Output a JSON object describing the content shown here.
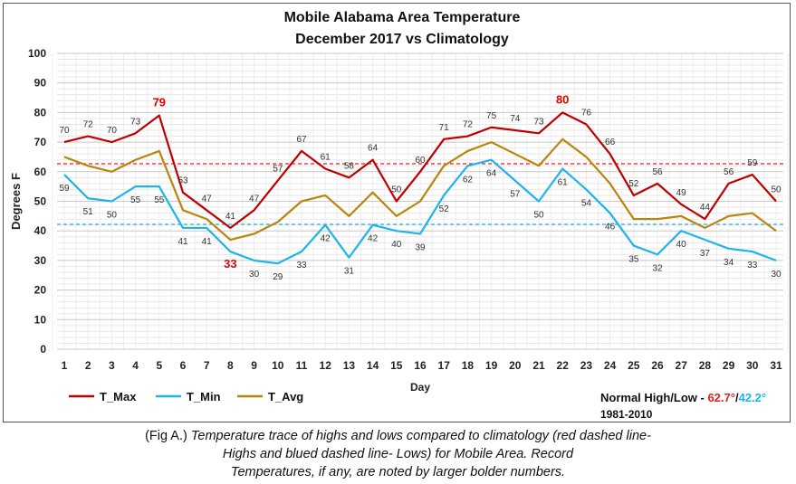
{
  "chart_data": {
    "type": "line",
    "title": "Mobile Alabama Area Temperature",
    "subtitle": "December 2017 vs Climatology",
    "xlabel": "Day",
    "ylabel": "Degrees F",
    "x": [
      1,
      2,
      3,
      4,
      5,
      6,
      7,
      8,
      9,
      10,
      11,
      12,
      13,
      14,
      15,
      16,
      17,
      18,
      19,
      20,
      21,
      22,
      23,
      24,
      25,
      26,
      27,
      28,
      29,
      30,
      31
    ],
    "ylim": [
      0,
      100
    ],
    "yticks": [
      0,
      10,
      20,
      30,
      40,
      50,
      60,
      70,
      80,
      90,
      100
    ],
    "grid": true,
    "series": [
      {
        "name": "T_Max",
        "color": "#C00000",
        "values": [
          70,
          72,
          70,
          73,
          79,
          53,
          47,
          41,
          47,
          57,
          67,
          61,
          58,
          64,
          50,
          60,
          71,
          72,
          75,
          74,
          73,
          80,
          76,
          66,
          52,
          56,
          49,
          44,
          56,
          59,
          50
        ]
      },
      {
        "name": "T_Min",
        "color": "#1EB4EB",
        "values": [
          59,
          51,
          50,
          55,
          55,
          41,
          41,
          33,
          30,
          29,
          33,
          42,
          31,
          42,
          40,
          39,
          52,
          62,
          64,
          57,
          50,
          61,
          54,
          46,
          35,
          32,
          40,
          37,
          34,
          33,
          30
        ]
      },
      {
        "name": "T_Avg",
        "color": "#B8860B",
        "values": [
          65,
          62,
          60,
          64,
          67,
          47,
          44,
          37,
          39,
          43,
          50,
          52,
          45,
          53,
          45,
          50,
          62,
          67,
          70,
          66,
          62,
          71,
          65,
          56,
          44,
          44,
          45,
          41,
          45,
          46,
          40
        ]
      }
    ],
    "normals": {
      "high": 62.7,
      "low": 42.2,
      "high_color": "#E02020",
      "low_color": "#1EB4EB"
    },
    "records": {
      "high_days": [
        5,
        22
      ],
      "low_days": [
        8
      ]
    },
    "legend_position": "bottom-left",
    "normal_label": {
      "prefix": "Normal High/Low - ",
      "high_text": "62.7°",
      "separator": "/",
      "low_text": "42.2°",
      "period": "1981-2010"
    }
  },
  "caption": {
    "lead": "(Fig A.) ",
    "line1": "Temperature trace of highs and lows compared to climatology (red dashed line-",
    "line2": "Highs and blued dashed line- Lows) for Mobile Area. Record",
    "line3": "Temperatures, if any, are noted by larger bolder numbers."
  }
}
